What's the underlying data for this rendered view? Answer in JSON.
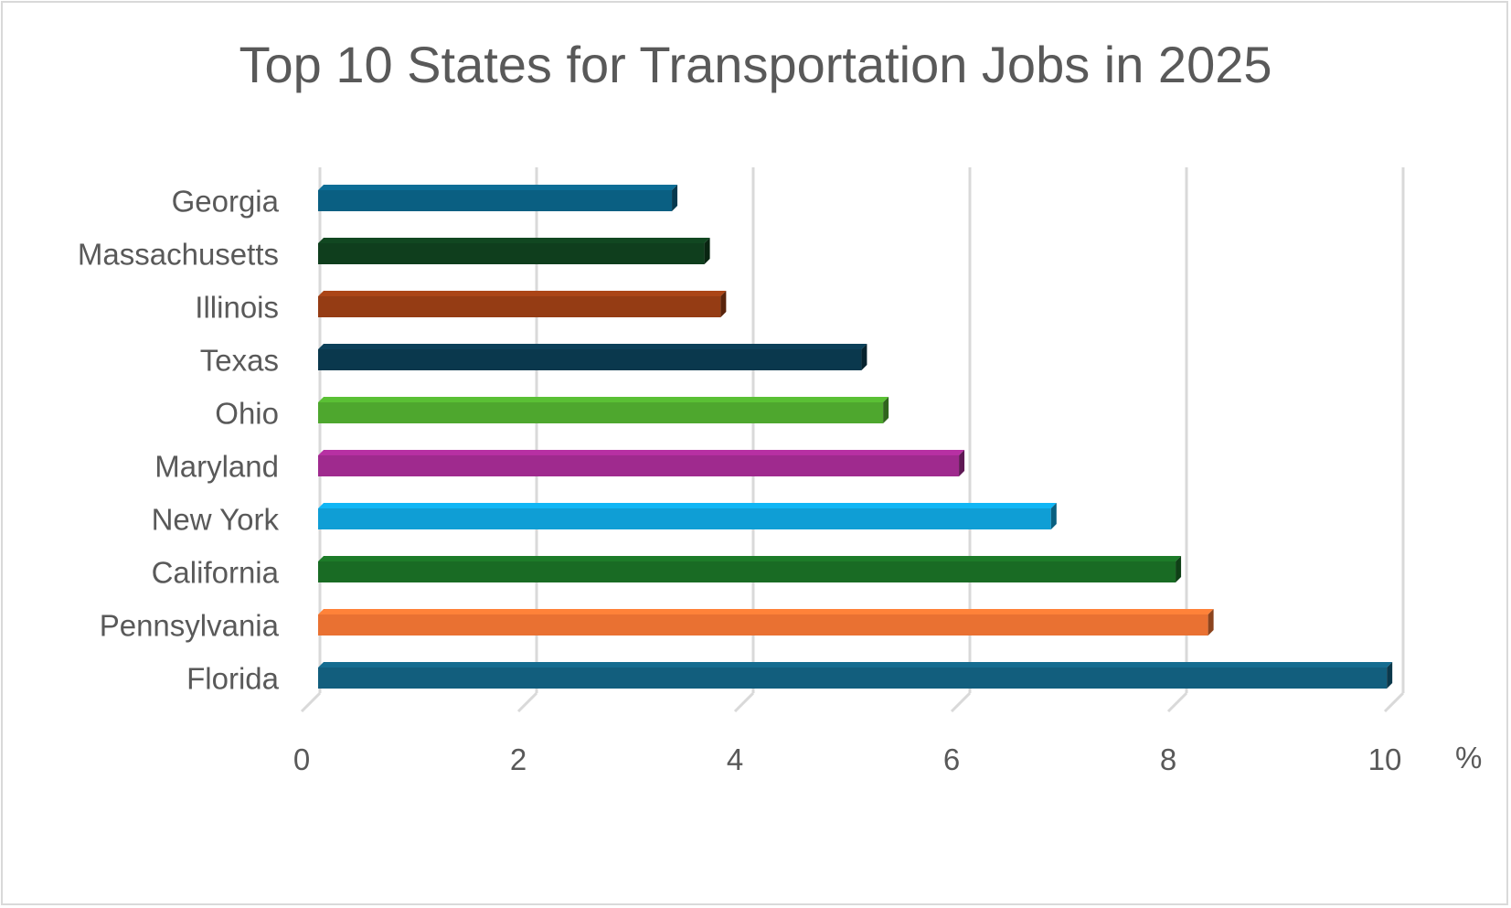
{
  "chart_data": {
    "type": "bar",
    "orientation": "horizontal",
    "title": "Top 10 States for Transportation Jobs in 2025",
    "categories": [
      "Georgia",
      "Massachusetts",
      "Illinois",
      "Texas",
      "Ohio",
      "Maryland",
      "New York",
      "California",
      "Pennsylvania",
      "Florida"
    ],
    "values": [
      3.3,
      3.6,
      3.75,
      5.05,
      5.25,
      5.95,
      6.8,
      7.95,
      8.25,
      9.9
    ],
    "colors": [
      "#0a5f82",
      "#0f3e1d",
      "#953c14",
      "#0a384d",
      "#4ea72e",
      "#9f2a8e",
      "#0f9ed5",
      "#196b24",
      "#e97132",
      "#125e7d"
    ],
    "xlabel": "%",
    "ylabel": "",
    "xlim": [
      0,
      10
    ],
    "ticks": [
      "0",
      "2",
      "4",
      "6",
      "8",
      "10"
    ],
    "grid": true
  }
}
